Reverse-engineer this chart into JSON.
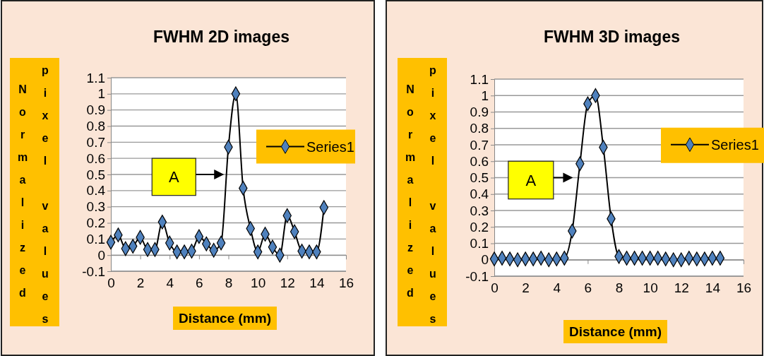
{
  "chart_data": [
    {
      "type": "line",
      "title": "FWHM 2D images",
      "xlabel": "Distance (mm)",
      "ylabel": "Normalized pixel values",
      "x": [
        0,
        0.5,
        1,
        1.5,
        2,
        2.5,
        3,
        3.5,
        4,
        4.5,
        5,
        5.5,
        6,
        6.5,
        7,
        7.5,
        8,
        8.5,
        9,
        9.5,
        10,
        10.5,
        11,
        11.5,
        12,
        12.5,
        13,
        13.5,
        14,
        14.5
      ],
      "series": [
        {
          "name": "Series1",
          "color": "#4f81bd",
          "values": [
            0.08,
            0.125,
            0.04,
            0.055,
            0.11,
            0.035,
            0.035,
            0.205,
            0.075,
            0.02,
            0.02,
            0.025,
            0.115,
            0.07,
            0.03,
            0.075,
            0.67,
            1.0,
            0.415,
            0.165,
            0.02,
            0.13,
            0.05,
            0.0,
            0.245,
            0.145,
            0.025,
            0.02,
            0.02,
            0.295
          ]
        }
      ],
      "xlim": [
        0,
        16
      ],
      "xticks": [
        0,
        2,
        4,
        6,
        8,
        10,
        12,
        14,
        16
      ],
      "ylim": [
        -0.1,
        1.1
      ],
      "yticks": [
        -0.1,
        0,
        0.1,
        0.2,
        0.3,
        0.4,
        0.5,
        0.6,
        0.7,
        0.8,
        0.9,
        1,
        1.1
      ],
      "grid": "y",
      "legend": "right",
      "marker": "diamond",
      "line_style": "solid",
      "annotations": [
        "A"
      ]
    },
    {
      "type": "line",
      "title": "FWHM 3D images",
      "xlabel": "Distance (mm)",
      "ylabel": "Normalized pixel values",
      "x": [
        0,
        0.5,
        1,
        1.5,
        2,
        2.5,
        3,
        3.5,
        4,
        4.5,
        5,
        5.5,
        6,
        6.5,
        7,
        7.5,
        8,
        8.5,
        9,
        9.5,
        10,
        10.5,
        11,
        11.5,
        12,
        12.5,
        13,
        13.5,
        14,
        14.5
      ],
      "series": [
        {
          "name": "Series1",
          "color": "#4f81bd",
          "values": [
            0.005,
            0.01,
            0.005,
            0,
            0.005,
            0.005,
            0.01,
            0,
            0.005,
            0.01,
            0.175,
            0.585,
            0.95,
            1.0,
            0.685,
            0.25,
            0.02,
            0.01,
            0.01,
            0.01,
            0.01,
            0.01,
            0.005,
            0,
            0,
            0.01,
            0.005,
            0.005,
            0.01,
            0.01
          ]
        }
      ],
      "xlim": [
        0,
        16
      ],
      "xticks": [
        0,
        2,
        4,
        6,
        8,
        10,
        12,
        14,
        16
      ],
      "ylim": [
        -0.1,
        1.1
      ],
      "yticks": [
        -0.1,
        0,
        0.1,
        0.2,
        0.3,
        0.4,
        0.5,
        0.6,
        0.7,
        0.8,
        0.9,
        1,
        1.1
      ],
      "grid": "y",
      "legend": "right",
      "marker": "diamond",
      "line_style": "solid",
      "annotations": [
        "A"
      ]
    }
  ]
}
